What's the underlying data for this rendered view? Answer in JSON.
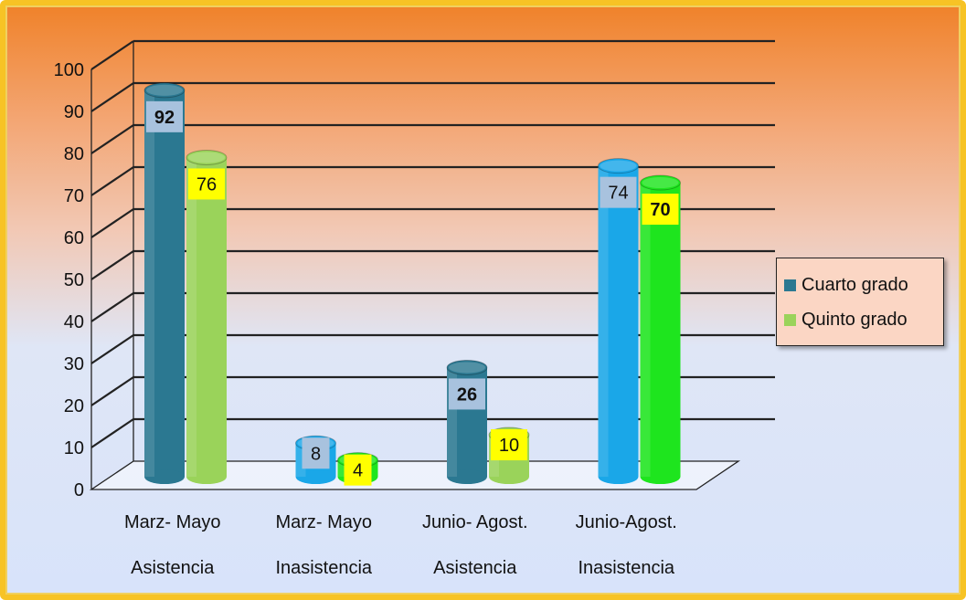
{
  "chart_data": {
    "type": "bar",
    "categories": [
      [
        "Marz- Mayo",
        "Asistencia"
      ],
      [
        "Marz- Mayo",
        "Inasistencia"
      ],
      [
        "Junio- Agost.",
        "Asistencia"
      ],
      [
        "Junio-Agost.",
        "Inasistencia"
      ]
    ],
    "series": [
      {
        "name": "Cuarto grado",
        "values": [
          92,
          8,
          26,
          74
        ]
      },
      {
        "name": "Quinto grado",
        "values": [
          76,
          4,
          10,
          70
        ]
      }
    ],
    "yticks": [
      "0",
      "10",
      "20",
      "30",
      "40",
      "50",
      "60",
      "70",
      "80",
      "90",
      "100"
    ],
    "ylim": [
      0,
      100
    ],
    "grid": true,
    "legend": "right",
    "bar_colors": [
      [
        "#2b7891",
        "#9ad35a"
      ],
      [
        "#1aa7e8",
        "#1ee51e"
      ],
      [
        "#2b7891",
        "#9ad35a"
      ],
      [
        "#1aa7e8",
        "#1ee51e"
      ]
    ],
    "label_styles": [
      [
        {
          "bg": "#a8c2de",
          "bold": true
        },
        {
          "bg": "#ffff00",
          "bold": false
        }
      ],
      [
        {
          "bg": "#a8c2de",
          "bold": false
        },
        {
          "bg": "#ffff00",
          "bold": false
        }
      ],
      [
        {
          "bg": "#a8c2de",
          "bold": true
        },
        {
          "bg": "#ffff00",
          "bold": false
        }
      ],
      [
        {
          "bg": "#a8c2de",
          "bold": false
        },
        {
          "bg": "#ffff00",
          "bold": true
        }
      ]
    ],
    "legend_colors": [
      "#2b7891",
      "#9ad35a"
    ]
  }
}
